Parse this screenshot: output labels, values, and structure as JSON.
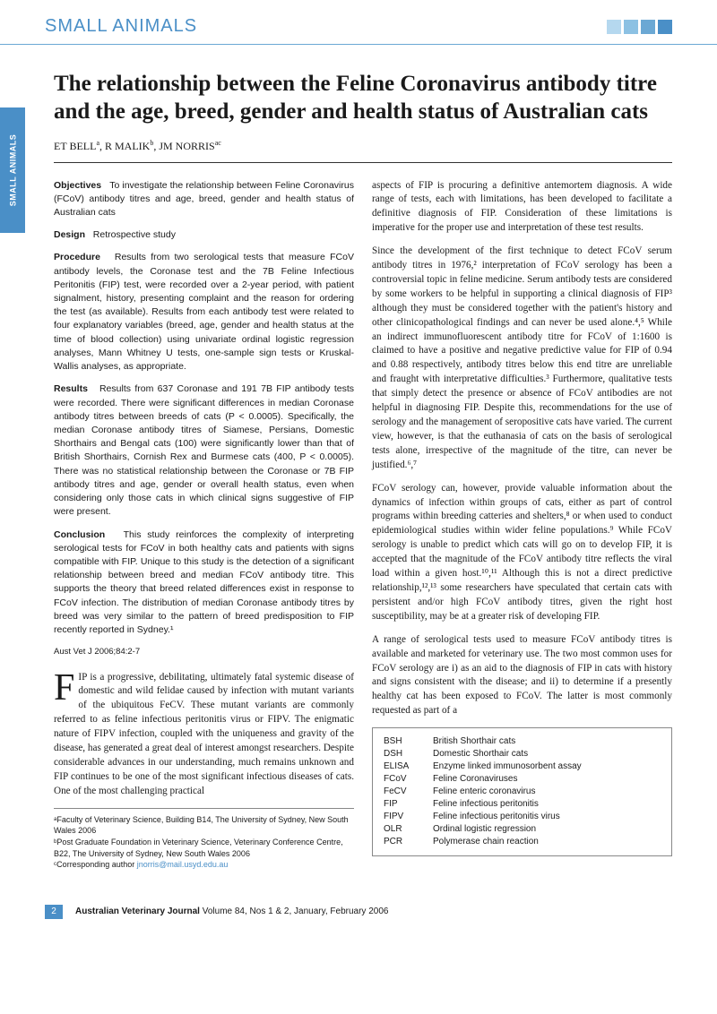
{
  "header": {
    "section": "SMALL ANIMALS",
    "side_tab": "SMALL ANIMALS",
    "squares": [
      "#b5d8ef",
      "#8cc1e3",
      "#6ba8d4",
      "#4a8fc7"
    ]
  },
  "title": "The relationship between the Feline Coronavirus antibody titre and the age, breed, gender and health status of Australian cats",
  "authors_html": "ET BELL<sup>a</sup>, R MALIK<sup>b</sup>, JM NORRIS<sup>ac</sup>",
  "abstract": {
    "objectives": {
      "label": "Objectives",
      "text": "To investigate the relationship between Feline Coronavirus (FCoV) antibody titres and age, breed, gender and health status of Australian cats"
    },
    "design": {
      "label": "Design",
      "text": "Retrospective study"
    },
    "procedure": {
      "label": "Procedure",
      "text": "Results from two serological tests that measure FCoV antibody levels, the Coronase test and the 7B Feline Infectious Peritonitis (FIP) test, were recorded over a 2-year period, with patient signalment, history, presenting complaint and the reason for ordering the test (as available). Results from each antibody test were related to four explanatory variables (breed, age, gender and health status at the time of blood collection) using univariate ordinal logistic regression analyses, Mann Whitney U tests, one-sample sign tests or Kruskal-Wallis analyses, as appropriate."
    },
    "results": {
      "label": "Results",
      "text": "Results from 637 Coronase and 191 7B FIP antibody tests were recorded. There were significant differences in median Coronase antibody titres between breeds of cats (P < 0.0005). Specifically, the median Coronase antibody titres of Siamese, Persians, Domestic Shorthairs and Bengal cats (100) were significantly lower than that of British Shorthairs, Cornish Rex and Burmese cats (400, P < 0.0005). There was no statistical relationship between the Coronase or 7B FIP antibody titres and age, gender or overall health status, even when considering only those cats in which clinical signs suggestive of FIP were present."
    },
    "conclusion": {
      "label": "Conclusion",
      "text": "This study reinforces the complexity of interpreting serological tests for FCoV in both healthy cats and patients with signs compatible with FIP. Unique to this study is the detection of a significant relationship between breed and median FCoV antibody titre. This supports the theory that breed related differences exist in response to FCoV infection. The distribution of median Coronase antibody titres by breed was very similar to the pattern of breed predisposition to FIP recently reported in Sydney.¹"
    },
    "citation": "Aust Vet J 2006;84:2-7"
  },
  "body": {
    "p1": "IP is a progressive, debilitating, ultimately fatal systemic disease of domestic and wild felidae caused by infection with mutant variants of the ubiquitous FeCV. These mutant variants are commonly referred to as feline infectious peritonitis virus or FIPV. The enigmatic nature of FIPV infection, coupled with the uniqueness and gravity of the disease, has generated a great deal of interest amongst researchers. Despite considerable advances in our understanding, much remains unknown and FIP continues to be one of the most significant infectious diseases of cats. One of the most challenging practical",
    "p2": "aspects of FIP is procuring a definitive antemortem diagnosis. A wide range of tests, each with limitations, has been developed to facilitate a definitive diagnosis of FIP. Consideration of these limitations is imperative for the proper use and interpretation of these test results.",
    "p3": "Since the development of the first technique to detect FCoV serum antibody titres in 1976,² interpretation of FCoV serology has been a controversial topic in feline medicine. Serum antibody tests are considered by some workers to be helpful in supporting a clinical diagnosis of FIP³ although they must be considered together with the patient's history and other clinicopathological findings and can never be used alone.⁴,⁵ While an indirect immunofluorescent antibody titre for FCoV of 1:1600 is claimed to have a positive and negative predictive value for FIP of 0.94 and 0.88 respectively, antibody titres below this end titre are unreliable and fraught with interpretative difficulties.³ Furthermore, qualitative tests that simply detect the presence or absence of FCoV antibodies are not helpful in diagnosing FIP. Despite this, recommendations for the use of serology and the management of seropositive cats have varied. The current view, however, is that the euthanasia of cats on the basis of serological tests alone, irrespective of the magnitude of the titre, can never be justified.⁶,⁷",
    "p4": "FCoV serology can, however, provide valuable information about the dynamics of infection within groups of cats, either as part of control programs within breeding catteries and shelters,⁸ or when used to conduct epidemiological studies within wider feline populations.⁹ While FCoV serology is unable to predict which cats will go on to develop FIP, it is accepted that the magnitude of the FCoV antibody titre reflects the viral load within a given host.¹⁰,¹¹ Although this is not a direct predictive relationship,¹²,¹³ some researchers have speculated that certain cats with persistent and/or high FCoV antibody titres, given the right host susceptibility, may be at a greater risk of developing FIP.",
    "p5": "A range of serological tests used to measure FCoV antibody titres is available and marketed for veterinary use. The two most common uses for FCoV serology are i) as an aid to the diagnosis of FIP in cats with history and signs consistent with the disease; and ii) to determine if a presently healthy cat has been exposed to FCoV. The latter is most commonly requested as part of a"
  },
  "affiliations": {
    "a": "ᵃFaculty of Veterinary Science, Building B14, The University of Sydney, New South Wales  2006",
    "b": "ᵇPost Graduate Foundation in Veterinary Science, Veterinary Conference Centre, B22, The University of Sydney, New South Wales 2006",
    "c_prefix": "ᶜCorresponding author ",
    "c_email": "jnorris@mail.usyd.edu.au"
  },
  "abbreviations": [
    {
      "k": "BSH",
      "v": "British Shorthair cats"
    },
    {
      "k": "DSH",
      "v": "Domestic Shorthair cats"
    },
    {
      "k": "ELISA",
      "v": "Enzyme linked immunosorbent assay"
    },
    {
      "k": "FCoV",
      "v": "Feline Coronaviruses"
    },
    {
      "k": "FeCV",
      "v": "Feline enteric coronavirus"
    },
    {
      "k": "FIP",
      "v": "Feline infectious peritonitis"
    },
    {
      "k": "FIPV",
      "v": "Feline infectious peritonitis virus"
    },
    {
      "k": "OLR",
      "v": "Ordinal logistic regression"
    },
    {
      "k": "PCR",
      "v": "Polymerase chain reaction"
    }
  ],
  "footer": {
    "page": "2",
    "journal": "Australian Veterinary Journal",
    "issue": " Volume 84, Nos 1 & 2, January, February 2006"
  }
}
